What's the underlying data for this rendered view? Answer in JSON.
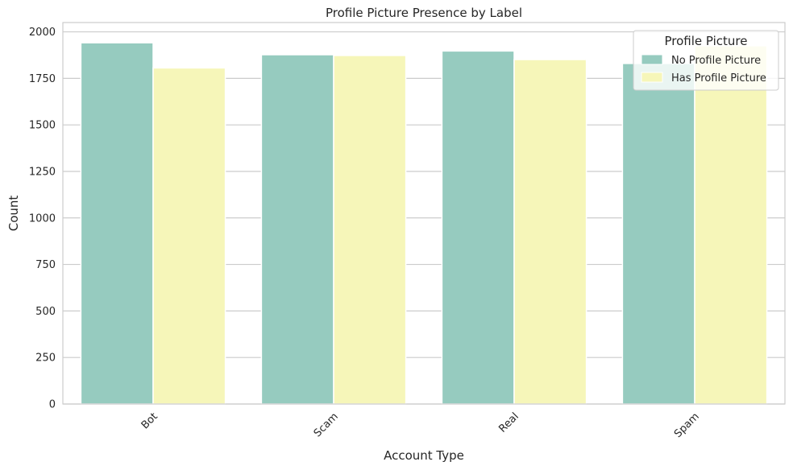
{
  "chart_data": {
    "type": "bar",
    "title": "Profile Picture Presence by Label",
    "xlabel": "Account Type",
    "ylabel": "Count",
    "categories": [
      "Bot",
      "Scam",
      "Real",
      "Spam"
    ],
    "ylim": [
      0,
      2050
    ],
    "yticks": [
      0,
      250,
      500,
      750,
      1000,
      1250,
      1500,
      1750,
      2000
    ],
    "grid": "horizontal",
    "legend_title": "Profile Picture",
    "legend_position": "top-right",
    "series": [
      {
        "name": "No Profile Picture",
        "color": "#96cbbf",
        "values": [
          1941,
          1877,
          1897,
          1830
        ]
      },
      {
        "name": "Has Profile Picture",
        "color": "#f6f6b9",
        "values": [
          1806,
          1873,
          1851,
          1925
        ]
      }
    ]
  }
}
